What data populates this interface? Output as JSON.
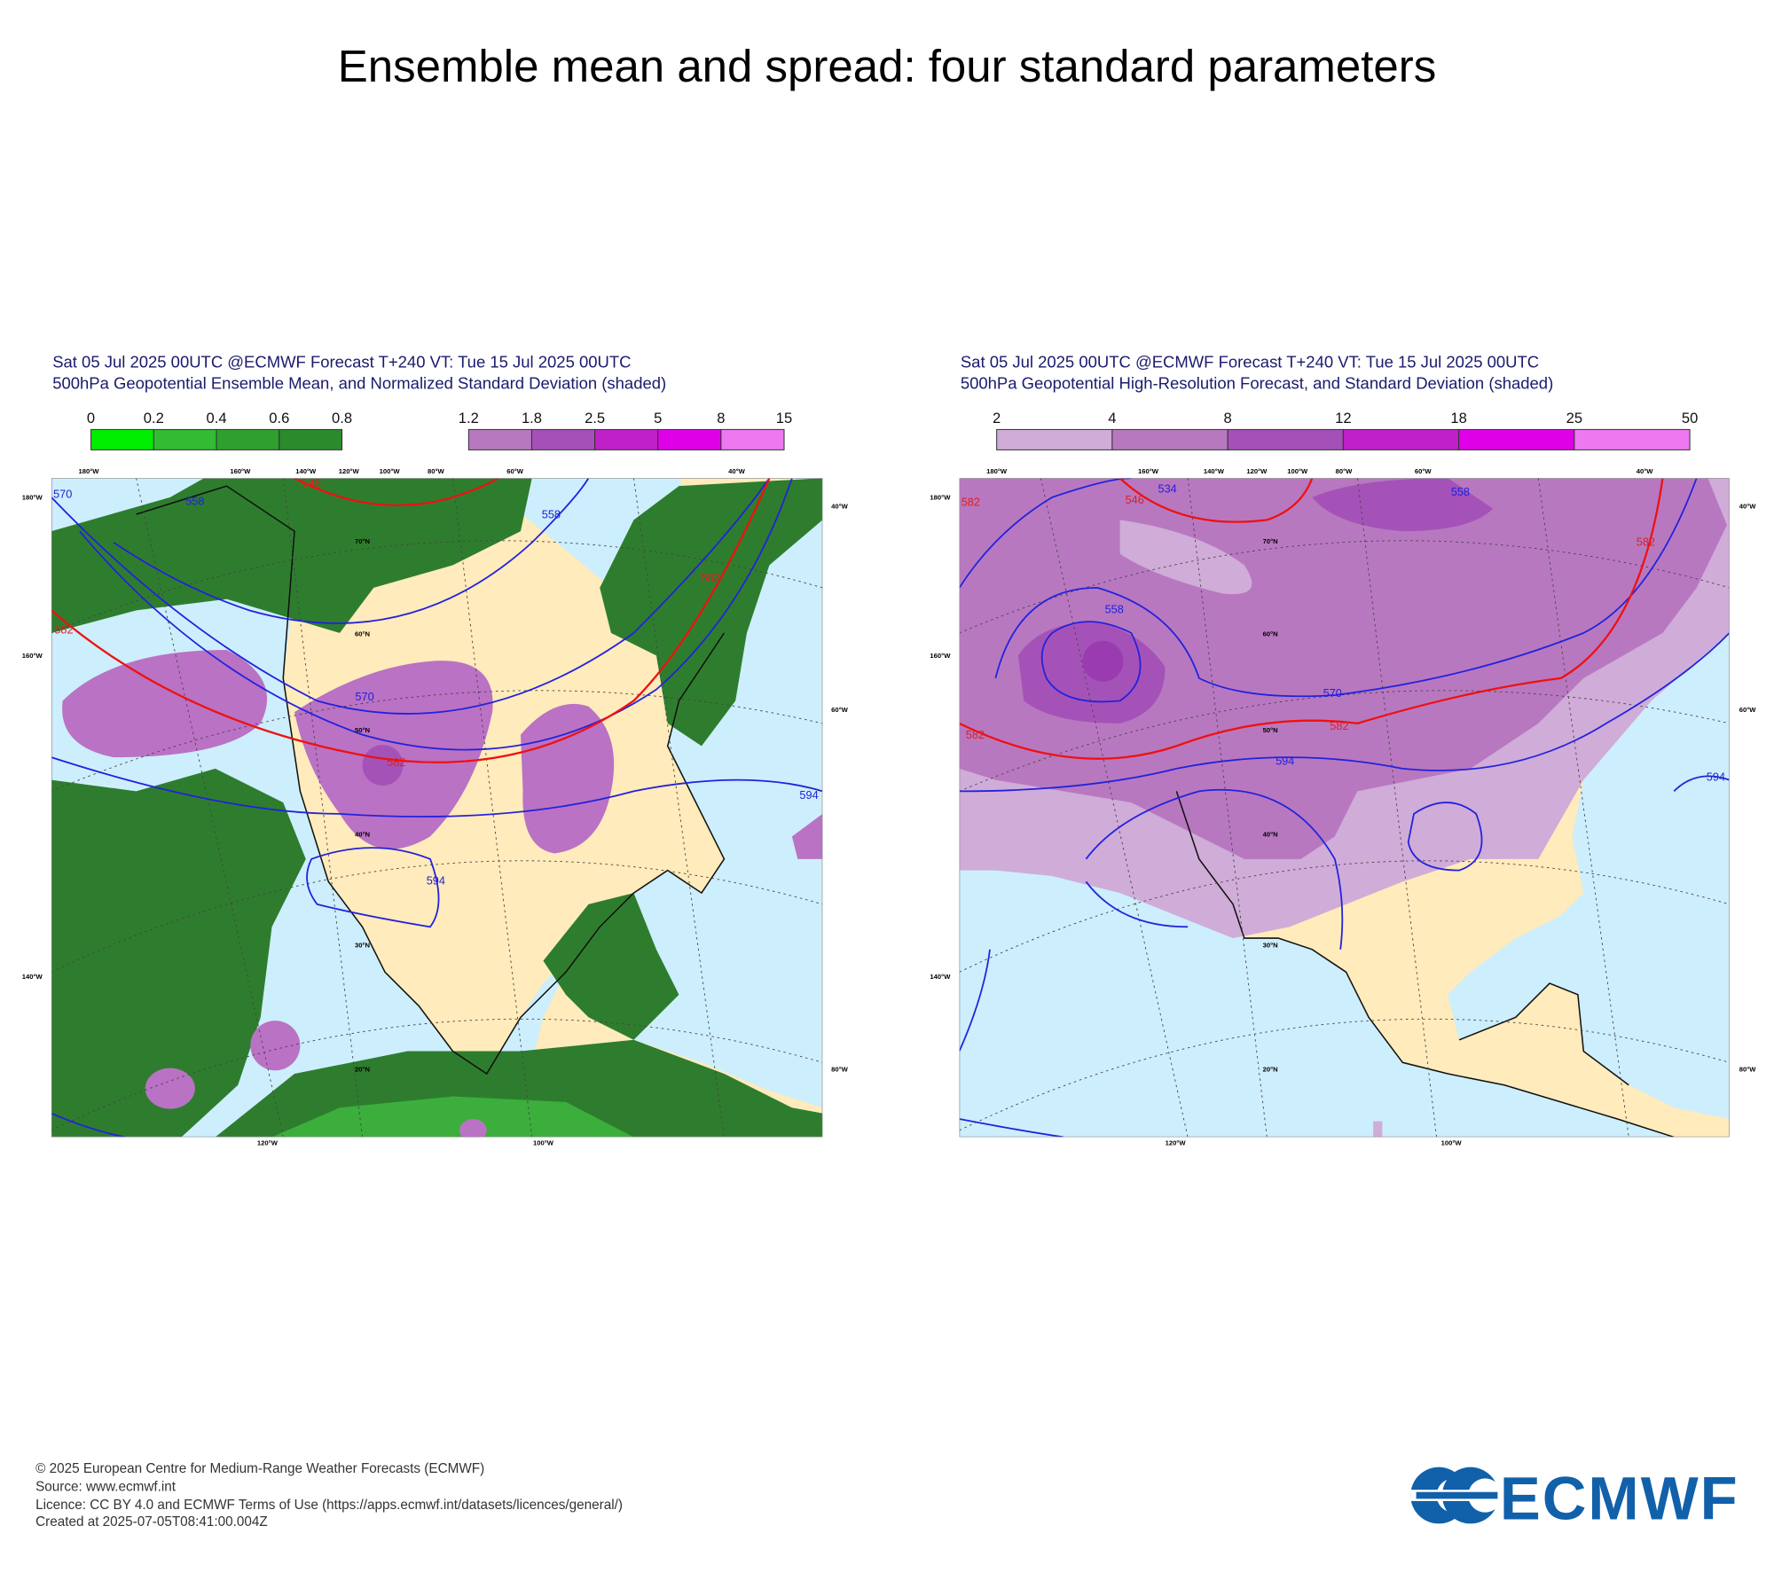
{
  "title": "Ensemble mean and spread: four standard parameters",
  "panels": [
    {
      "header_lines": [
        "Sat 05 Jul 2025 00UTC @ECMWF Forecast T+240 VT: Tue 15 Jul 2025 00UTC",
        "500hPa Geopotential Ensemble Mean, and Normalized Standard Deviation (shaded)"
      ],
      "legends": [
        {
          "ticks": [
            0,
            0.2,
            0.4,
            0.6,
            0.8
          ],
          "colors": [
            "#00ee00",
            "#33bb33",
            "#2ea02e",
            "#2b8a2b"
          ]
        },
        {
          "ticks": [
            1.2,
            1.8,
            2.5,
            5,
            8,
            15
          ],
          "colors": [
            "#b878c0",
            "#a550b8",
            "#c020c8",
            "#e000e8",
            "#ee78f0"
          ]
        }
      ],
      "map_labels": [
        "180°W",
        "160°W",
        "140°W",
        "120°W",
        "100°W",
        "80°W",
        "60°W",
        "40°W",
        "180°W",
        "160°W",
        "140°W",
        "40°W",
        "60°W",
        "80°W",
        "120°W",
        "100°W",
        "70°N",
        "60°N",
        "50°N",
        "40°N",
        "30°N",
        "20°N"
      ],
      "contour_labels": [
        "570",
        "570",
        "582",
        "582",
        "582",
        "546",
        "558",
        "558",
        "594",
        "594"
      ]
    },
    {
      "header_lines": [
        "Sat 05 Jul 2025 00UTC @ECMWF Forecast T+240 VT: Tue 15 Jul 2025 00UTC",
        "500hPa Geopotential High-Resolution Forecast, and Standard Deviation (shaded)"
      ],
      "legends": [
        {
          "ticks": [
            2,
            4,
            8,
            12,
            18,
            25,
            50
          ],
          "colors": [
            "#d0acd8",
            "#b878c0",
            "#a550b8",
            "#c020c8",
            "#e000e8",
            "#ee78f0"
          ]
        }
      ],
      "map_labels": [
        "180°W",
        "160°W",
        "140°W",
        "120°W",
        "100°W",
        "80°W",
        "60°W",
        "40°W",
        "180°W",
        "160°W",
        "140°W",
        "40°W",
        "60°W",
        "80°W",
        "120°W",
        "100°W",
        "70°N",
        "60°N",
        "50°N",
        "40°N",
        "30°N",
        "20°N"
      ],
      "contour_labels": [
        "582",
        "546",
        "534",
        "558",
        "558",
        "570",
        "582",
        "594",
        "582",
        "594",
        "582"
      ]
    }
  ],
  "footer": [
    "© 2025 European Centre for Medium-Range Weather Forecasts (ECMWF)",
    "Source: www.ecmwf.int",
    "Licence: CC BY 4.0 and ECMWF Terms of Use (https://apps.ecmwf.int/datasets/licences/general/)",
    "Created at 2025-07-05T08:41:00.004Z"
  ],
  "logo": "ECMWF"
}
